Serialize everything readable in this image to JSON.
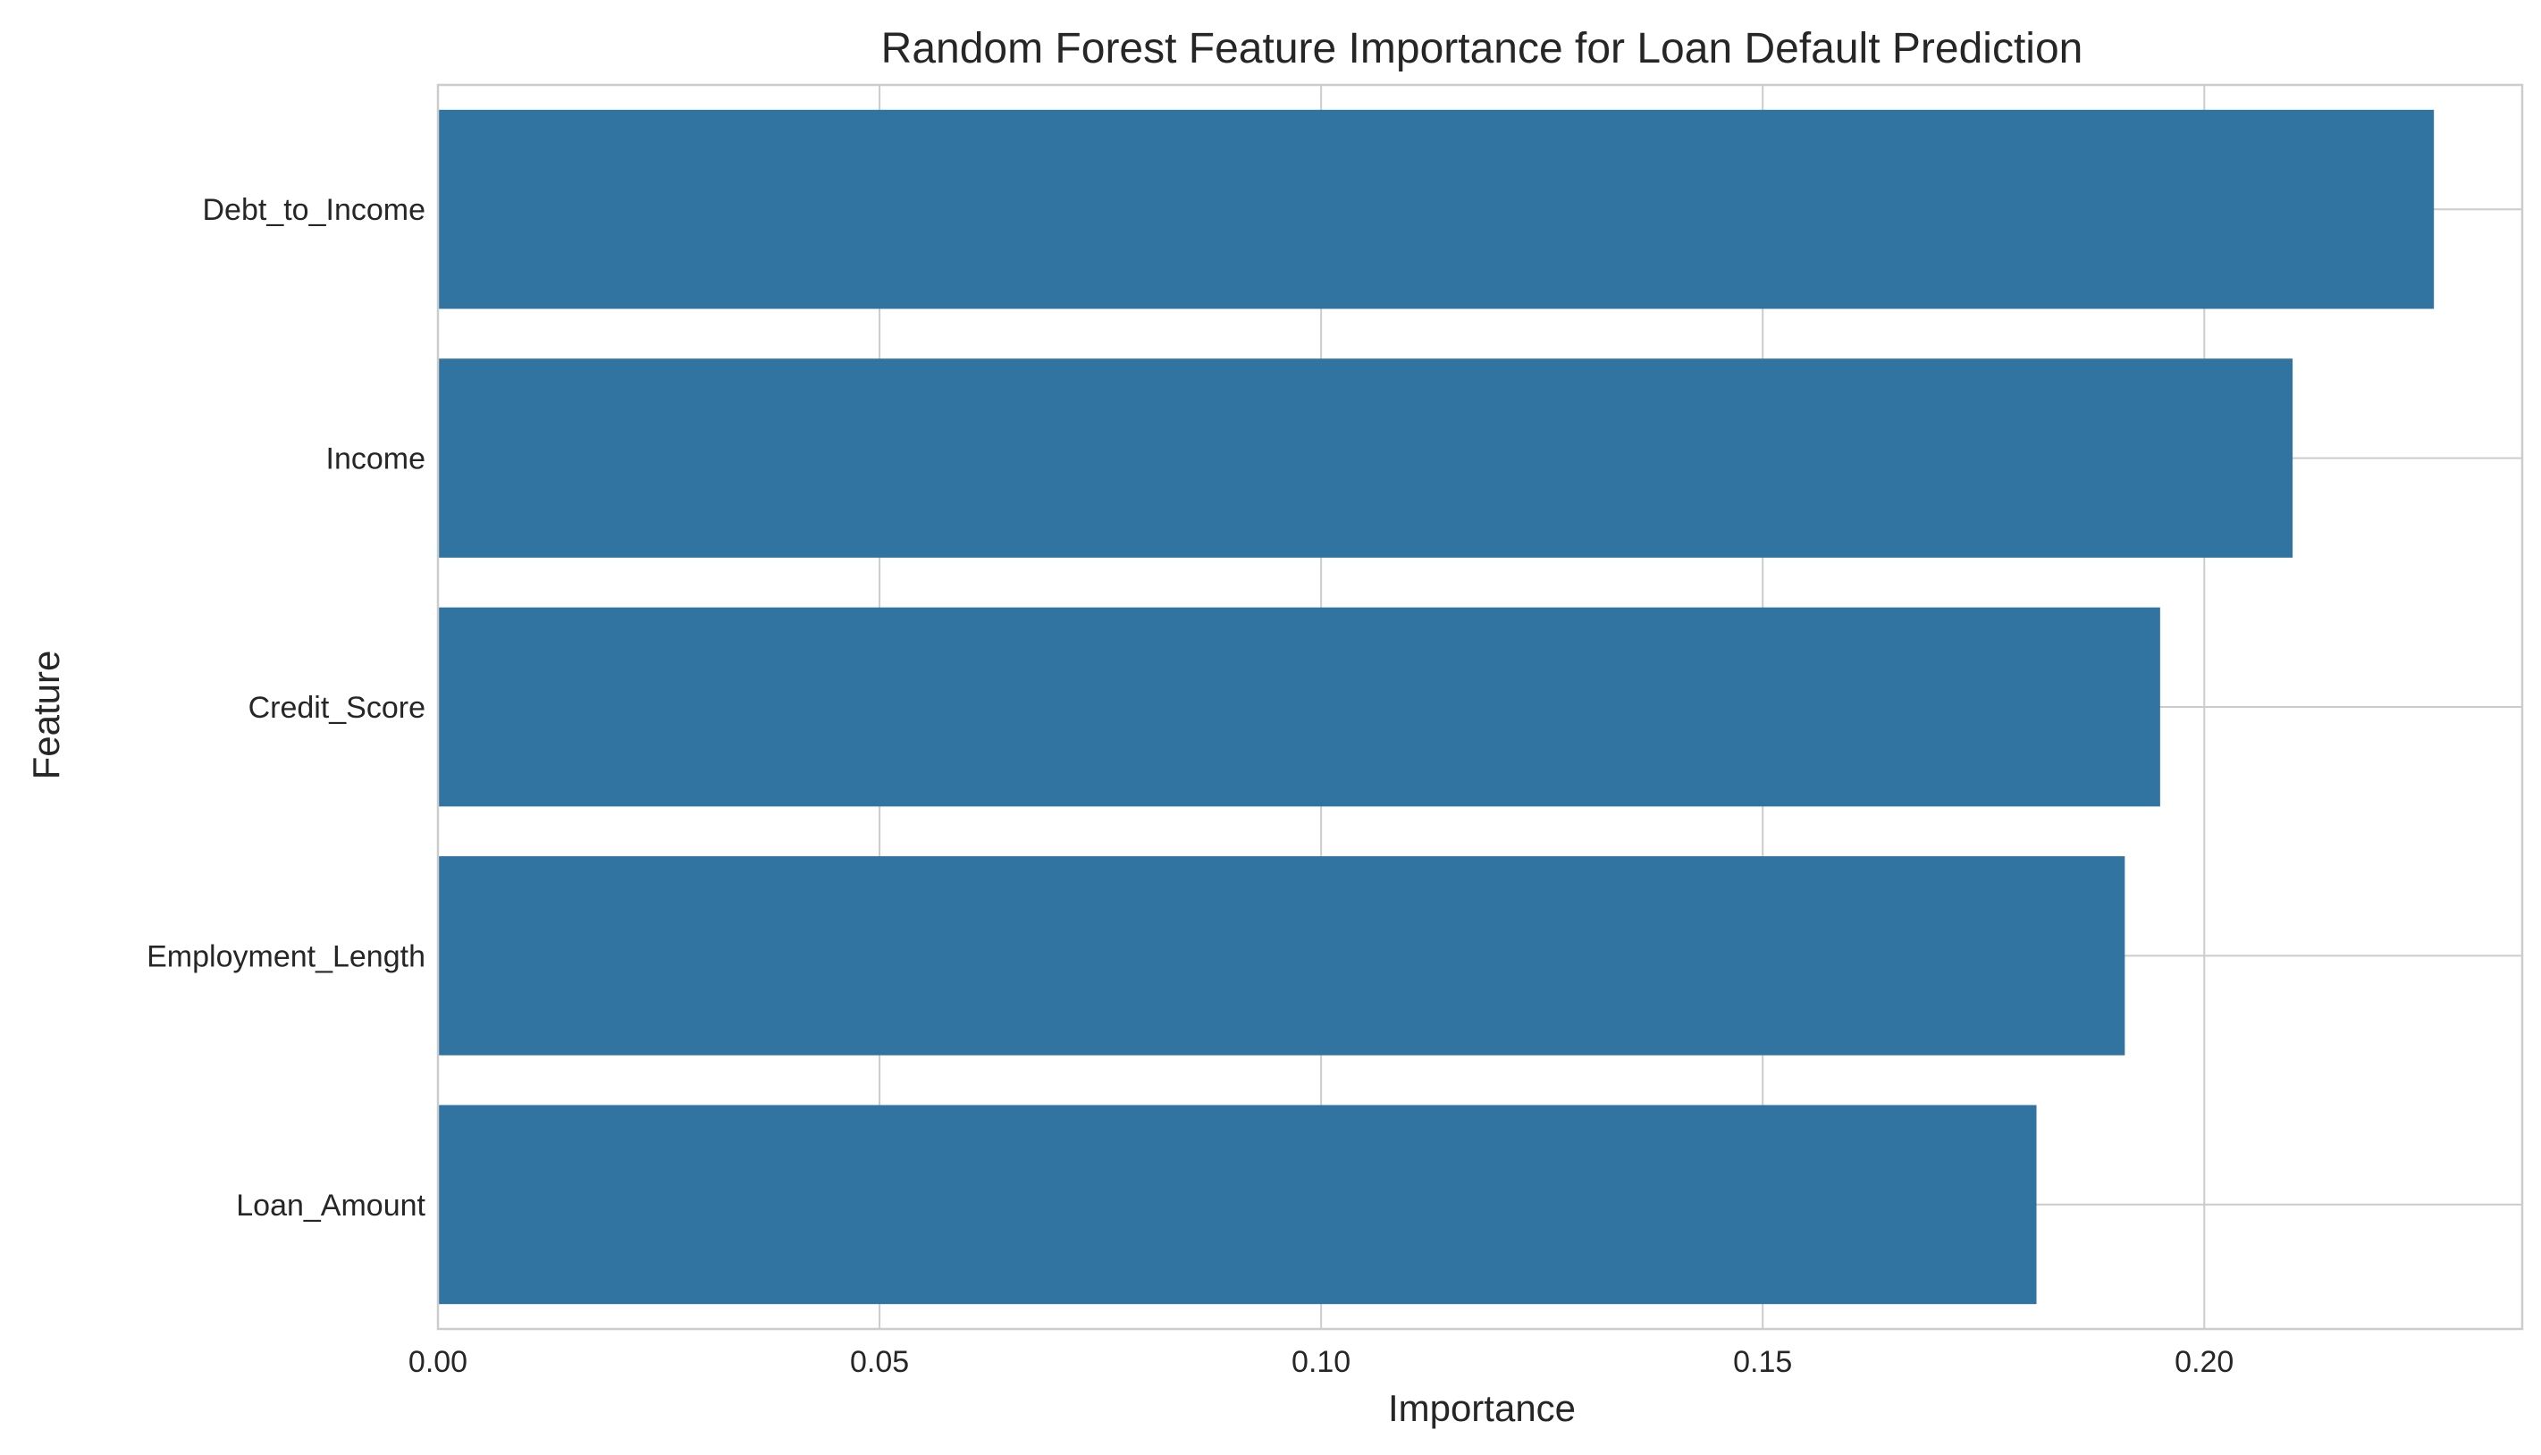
{
  "chart_data": {
    "type": "bar",
    "orientation": "horizontal",
    "title": "Random Forest Feature Importance for Loan Default Prediction",
    "xlabel": "Importance",
    "ylabel": "Feature",
    "categories": [
      "Debt_to_Income",
      "Income",
      "Credit_Score",
      "Employment_Length",
      "Loan_Amount"
    ],
    "values": [
      0.226,
      0.21,
      0.195,
      0.191,
      0.181
    ],
    "xlim": [
      0,
      0.236
    ],
    "xticks": [
      0.0,
      0.05,
      0.1,
      0.15,
      0.2
    ],
    "xtick_labels": [
      "0.00",
      "0.05",
      "0.10",
      "0.15",
      "0.20"
    ],
    "grid": true,
    "bar_color": "#3274a1",
    "grid_color": "#cccccc"
  }
}
